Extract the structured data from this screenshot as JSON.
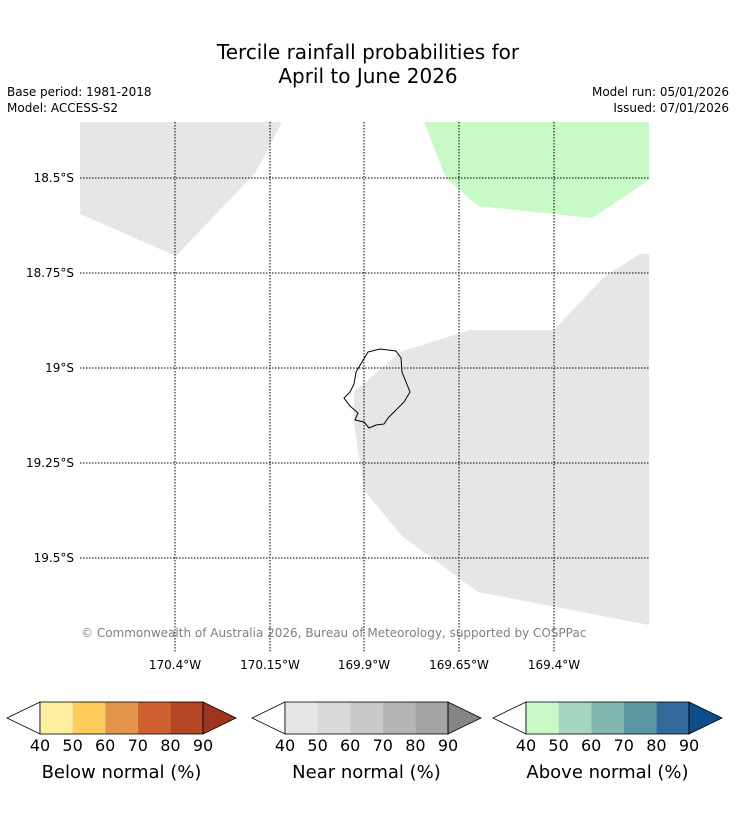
{
  "title": {
    "line1": "Tercile rainfall probabilities for",
    "line2": "April to June 2026"
  },
  "meta": {
    "base_period": "Base period: 1981-2018",
    "model": "Model: ACCESS-S2",
    "model_run": "Model run: 05/01/2026",
    "issued": "Issued: 07/01/2026"
  },
  "map": {
    "lat_labels": [
      "18.5°S",
      "18.75°S",
      "19°S",
      "19.25°S",
      "19.5°S"
    ],
    "lon_labels": [
      "170.4°W",
      "170.15°W",
      "169.9°W",
      "169.65°W",
      "169.4°W"
    ],
    "copyright": "© Commonwealth of Australia 2026, Bureau of Meteorology, supported by COSPPac",
    "colors": {
      "near_normal_region": "#e6e6e6",
      "above_normal_region": "#c8fac8",
      "grid": "#000000",
      "coast": "#000000"
    }
  },
  "colorbars": [
    {
      "title": "Below normal (%)",
      "ticks": [
        "40",
        "50",
        "60",
        "70",
        "80",
        "90"
      ],
      "colors": [
        "#ffffff",
        "#ffeda0",
        "#fecc5c",
        "#e3944a",
        "#cf6131",
        "#b34726",
        "#9c3620"
      ]
    },
    {
      "title": "Near normal (%)",
      "ticks": [
        "40",
        "50",
        "60",
        "70",
        "80",
        "90"
      ],
      "colors": [
        "#ffffff",
        "#e6e6e6",
        "#d9d9d9",
        "#c8c8c8",
        "#b5b5b5",
        "#a3a3a3",
        "#858585"
      ]
    },
    {
      "title": "Above normal (%)",
      "ticks": [
        "40",
        "50",
        "60",
        "70",
        "80",
        "90"
      ],
      "colors": [
        "#ffffff",
        "#c8fac8",
        "#a5d6bf",
        "#80b7b0",
        "#5d96a3",
        "#31699b",
        "#0d4d8a"
      ]
    }
  ]
}
